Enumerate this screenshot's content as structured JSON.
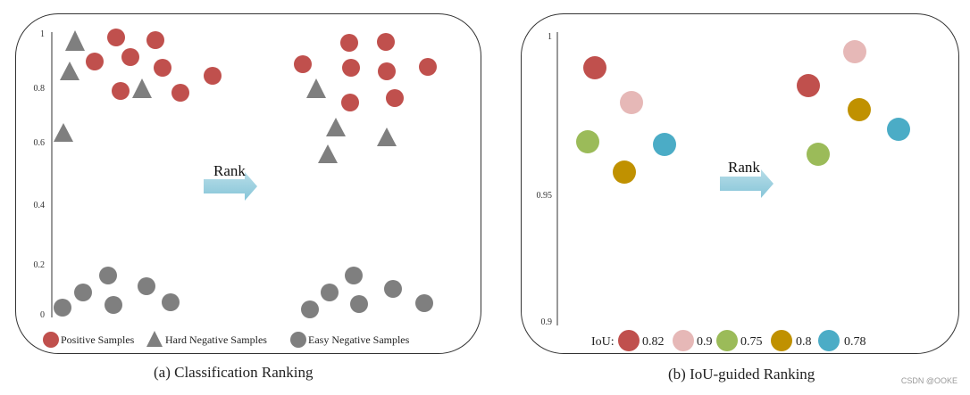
{
  "left_panel": {
    "caption": "(a)  Classification Ranking",
    "arrow_label": "Rank",
    "y_ticks": [
      "1",
      "0.8",
      "0.6",
      "0.4",
      "0.2",
      "0"
    ],
    "legend": [
      {
        "shape": "circle",
        "color": "#c0504d",
        "label": "Positive Samples"
      },
      {
        "shape": "triangle",
        "color": "#7f7f7f",
        "label": "Hard  Negative Samples"
      },
      {
        "shape": "circle",
        "color": "#7f7f7f",
        "label": "Easy Negative Samples"
      }
    ]
  },
  "right_panel": {
    "caption": "(b) IoU-guided Ranking",
    "arrow_label": "Rank",
    "y_ticks": [
      "1",
      "0.95",
      "0.9"
    ],
    "iou_label": "IoU:",
    "iou_legend": [
      {
        "color": "#c0504d",
        "value": "0.82"
      },
      {
        "color": "#e6b8b7",
        "value": "0.9"
      },
      {
        "color": "#9bbb59",
        "value": "0.75"
      },
      {
        "color": "#c09100",
        "value": "0.8"
      },
      {
        "color": "#4bacc6",
        "value": "0.78"
      }
    ]
  },
  "colors": {
    "positive": "#c0504d",
    "negative": "#7f7f7f",
    "arrow": "#92cddc"
  },
  "watermark": "CSDN @OOKE"
}
